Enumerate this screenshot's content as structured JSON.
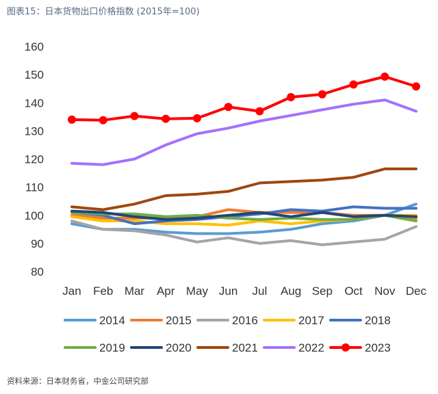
{
  "figure": {
    "title": "图表15：日本货物出口价格指数 (2015年=100)",
    "source": "资料来源：日本财务省，中金公司研究部"
  },
  "chart_data": {
    "type": "line",
    "title": "",
    "xlabel": "",
    "ylabel": "",
    "ylim": [
      80,
      160
    ],
    "yticks": [
      80,
      90,
      100,
      110,
      120,
      130,
      140,
      150,
      160
    ],
    "grid": false,
    "legend_position": "bottom",
    "categories": [
      "Jan",
      "Feb",
      "Mar",
      "Apr",
      "May",
      "Jun",
      "Jul",
      "Aug",
      "Sep",
      "Oct",
      "Nov",
      "Dec"
    ],
    "series": [
      {
        "name": "2014",
        "color": "#5B9BD5",
        "markers": false,
        "values": [
          97,
          95,
          95,
          94,
          93.5,
          93.5,
          94,
          95,
          97,
          98,
          100,
          104
        ]
      },
      {
        "name": "2015",
        "color": "#ED7D31",
        "markers": false,
        "values": [
          100,
          99,
          99,
          99,
          99.5,
          102,
          101,
          101,
          101,
          100,
          100,
          99
        ]
      },
      {
        "name": "2016",
        "color": "#A5A5A5",
        "markers": false,
        "values": [
          98,
          95,
          94.5,
          93,
          90.5,
          92,
          90,
          91,
          89.5,
          90.5,
          91.5,
          96
        ]
      },
      {
        "name": "2017",
        "color": "#FFC000",
        "markers": false,
        "values": [
          99.5,
          98,
          98,
          97,
          97,
          96.5,
          98,
          97,
          98,
          98.5,
          100,
          100
        ]
      },
      {
        "name": "2018",
        "color": "#4472C4",
        "markers": false,
        "values": [
          101,
          100,
          97,
          98,
          98.5,
          99.5,
          100.5,
          102,
          101.5,
          103,
          102.5,
          102.5
        ]
      },
      {
        "name": "2019",
        "color": "#70AD47",
        "markers": false,
        "values": [
          101,
          100.5,
          100.5,
          99.5,
          100,
          99,
          98.5,
          99,
          98.5,
          98.5,
          100,
          98
        ]
      },
      {
        "name": "2020",
        "color": "#264478",
        "markers": false,
        "values": [
          101.5,
          101,
          99.5,
          98.5,
          99,
          100,
          101,
          99.5,
          101,
          99.5,
          100,
          99.5
        ]
      },
      {
        "name": "2021",
        "color": "#9E480E",
        "markers": false,
        "values": [
          103,
          102,
          104,
          107,
          107.5,
          108.5,
          111.5,
          112,
          112.5,
          113.5,
          116.5,
          116.5
        ]
      },
      {
        "name": "2022",
        "color": "#A371FF",
        "markers": false,
        "values": [
          118.5,
          118,
          120,
          125,
          129,
          131,
          133.5,
          135.5,
          137.5,
          139.5,
          141,
          137
        ]
      },
      {
        "name": "2023",
        "color": "#FF0000",
        "markers": true,
        "values": [
          134,
          133.8,
          135.3,
          134.3,
          134.5,
          138.5,
          137,
          142,
          143,
          146.5,
          149.3,
          145.8
        ]
      }
    ]
  }
}
